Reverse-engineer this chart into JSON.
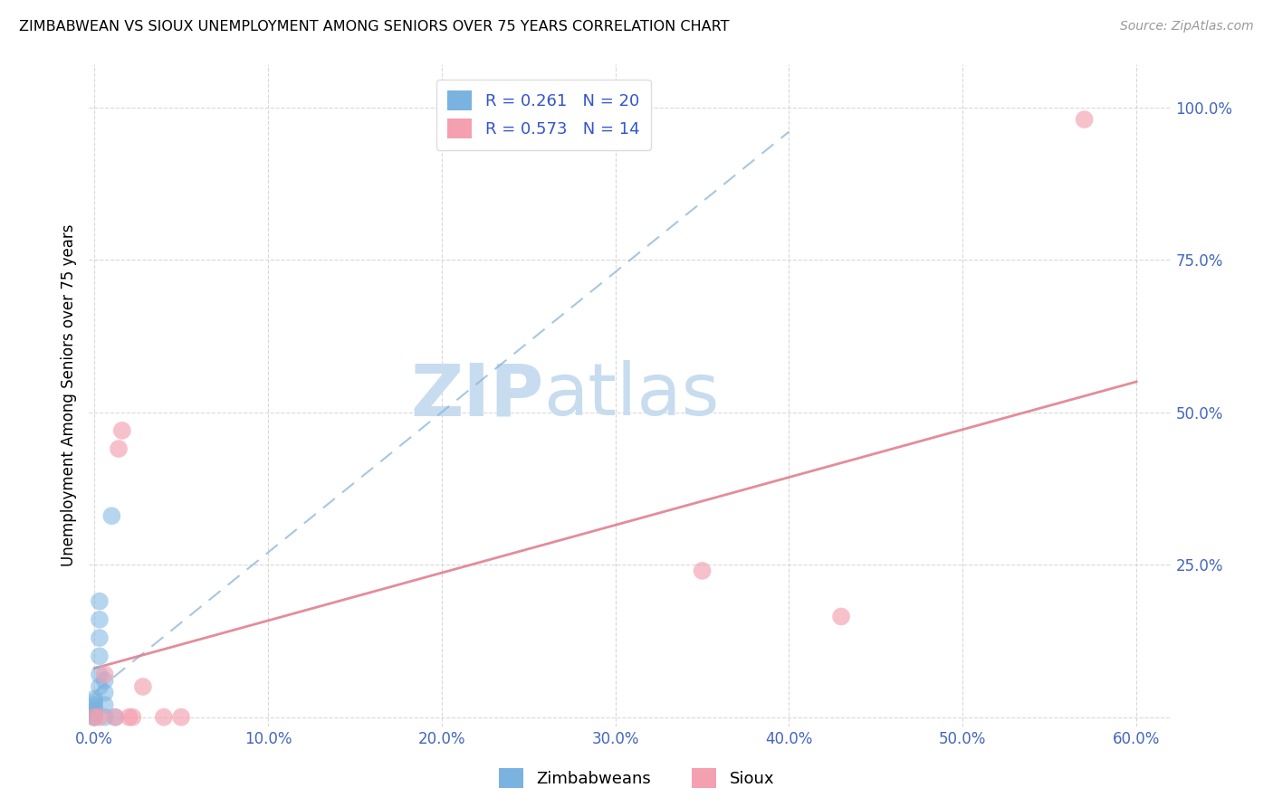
{
  "title": "ZIMBABWEAN VS SIOUX UNEMPLOYMENT AMONG SENIORS OVER 75 YEARS CORRELATION CHART",
  "source": "Source: ZipAtlas.com",
  "ylabel": "Unemployment Among Seniors over 75 years",
  "legend_labels": [
    "Zimbabweans",
    "Sioux"
  ],
  "r_zimbabwean": 0.261,
  "n_zimbabwean": 20,
  "r_sioux": 0.573,
  "n_sioux": 14,
  "xlim": [
    -0.003,
    0.62
  ],
  "ylim": [
    -0.015,
    1.07
  ],
  "xticks": [
    0.0,
    0.1,
    0.2,
    0.3,
    0.4,
    0.5,
    0.6
  ],
  "yticks": [
    0.0,
    0.25,
    0.5,
    0.75,
    1.0
  ],
  "xtick_labels": [
    "0.0%",
    "10.0%",
    "20.0%",
    "30.0%",
    "40.0%",
    "50.0%",
    "60.0%"
  ],
  "ytick_labels": [
    "",
    "25.0%",
    "50.0%",
    "75.0%",
    "100.0%"
  ],
  "zimbabwean_color": "#7ab3e0",
  "sioux_color": "#f4a0b0",
  "zimbabwean_line_color": "#8ab4d8",
  "sioux_line_color": "#e07888",
  "zimbabwean_scatter": [
    [
      0.0,
      0.0
    ],
    [
      0.0,
      0.005
    ],
    [
      0.0,
      0.01
    ],
    [
      0.0,
      0.015
    ],
    [
      0.0,
      0.02
    ],
    [
      0.0,
      0.025
    ],
    [
      0.0,
      0.03
    ],
    [
      0.0,
      0.0
    ],
    [
      0.003,
      0.05
    ],
    [
      0.003,
      0.07
    ],
    [
      0.003,
      0.1
    ],
    [
      0.003,
      0.13
    ],
    [
      0.003,
      0.16
    ],
    [
      0.003,
      0.19
    ],
    [
      0.006,
      0.0
    ],
    [
      0.006,
      0.02
    ],
    [
      0.006,
      0.04
    ],
    [
      0.006,
      0.06
    ],
    [
      0.01,
      0.33
    ],
    [
      0.012,
      0.0
    ]
  ],
  "sioux_scatter": [
    [
      0.0,
      0.0
    ],
    [
      0.003,
      0.0
    ],
    [
      0.006,
      0.07
    ],
    [
      0.012,
      0.0
    ],
    [
      0.014,
      0.44
    ],
    [
      0.016,
      0.47
    ],
    [
      0.02,
      0.0
    ],
    [
      0.022,
      0.0
    ],
    [
      0.028,
      0.05
    ],
    [
      0.35,
      0.24
    ],
    [
      0.57,
      0.98
    ],
    [
      0.43,
      0.165
    ],
    [
      0.04,
      0.0
    ],
    [
      0.05,
      0.0
    ]
  ],
  "zim_trendline": [
    0.0,
    0.013,
    0.26,
    0.013
  ],
  "sioux_trendline_x": [
    0.0,
    0.6
  ],
  "sioux_trendline_y": [
    0.08,
    0.55
  ],
  "watermark_zip": "ZIP",
  "watermark_atlas": "atlas",
  "background_color": "#ffffff",
  "grid_color": "#d0d0d0",
  "tick_color": "#4466bb",
  "text_color_blue": "#3355cc"
}
